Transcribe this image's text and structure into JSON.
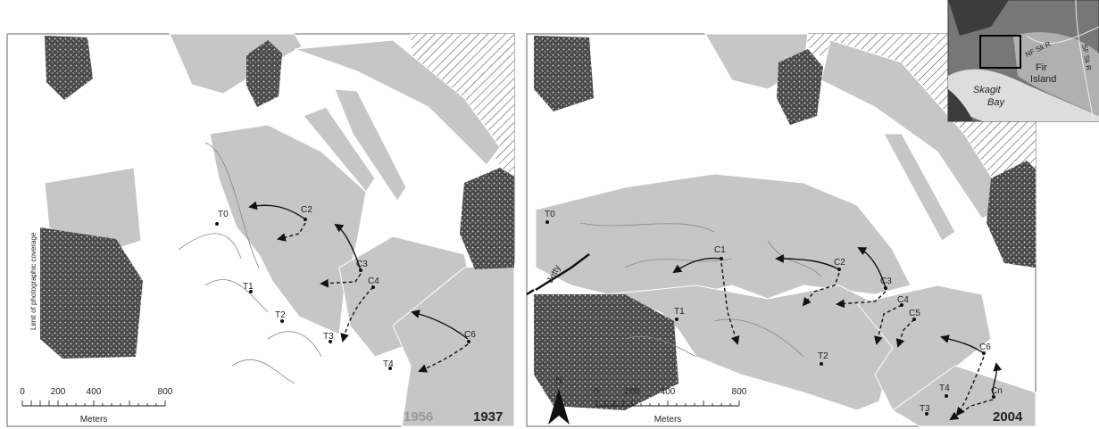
{
  "left_panel": {
    "site_labels": [
      "T0",
      "C2",
      "C3",
      "C4",
      "T1",
      "T2",
      "T3",
      "T4",
      "C6"
    ],
    "coverage_note": "Limit of photographic coverage",
    "scale_ticks": [
      "0",
      "200",
      "400",
      "800"
    ],
    "scale_unit": "Meters",
    "years": [
      "1956",
      "1937"
    ]
  },
  "right_panel": {
    "jetty_label": "Jetty",
    "site_labels": [
      "C1",
      "C2",
      "C3",
      "C4",
      "C5",
      "C6",
      "Cn",
      "T0",
      "T1",
      "T2",
      "T3",
      "T4"
    ],
    "north_label": "N",
    "scale_ticks": [
      "0",
      "200",
      "400",
      "800"
    ],
    "scale_unit": "Meters",
    "year": "2004"
  },
  "inset": {
    "labels": [
      "NF Sk R",
      "SF Sk R",
      "Fir",
      "Island",
      "Skagit",
      "Bay"
    ]
  }
}
